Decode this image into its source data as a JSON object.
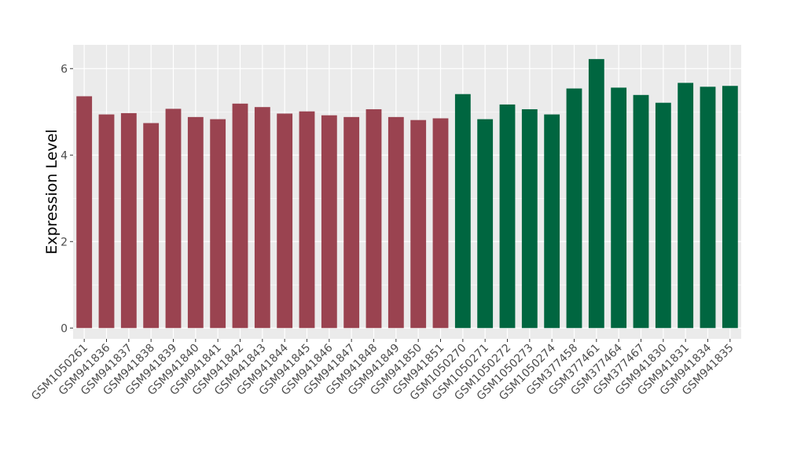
{
  "chart_data": {
    "type": "bar",
    "title": "",
    "xlabel": "",
    "ylabel": "Expression Level",
    "ylim": [
      -0.25,
      6.55
    ],
    "yticks": [
      0,
      2,
      4,
      6
    ],
    "grid": true,
    "colors": {
      "group1": "#9a4350",
      "group2": "#006640",
      "panel": "#ebebeb",
      "grid": "#ffffff"
    },
    "categories": [
      "GSM1050261",
      "GSM941836",
      "GSM941837",
      "GSM941838",
      "GSM941839",
      "GSM941840",
      "GSM941841",
      "GSM941842",
      "GSM941843",
      "GSM941844",
      "GSM941845",
      "GSM941846",
      "GSM941847",
      "GSM941848",
      "GSM941849",
      "GSM941850",
      "GSM941851",
      "GSM1050270",
      "GSM1050271",
      "GSM1050272",
      "GSM1050273",
      "GSM1050274",
      "GSM377458",
      "GSM377461",
      "GSM377464",
      "GSM377467",
      "GSM941830",
      "GSM941831",
      "GSM941834",
      "GSM941835"
    ],
    "values": [
      5.36,
      4.94,
      4.97,
      4.74,
      5.07,
      4.88,
      4.83,
      5.19,
      5.11,
      4.96,
      5.01,
      4.92,
      4.88,
      5.06,
      4.88,
      4.81,
      4.85,
      5.41,
      4.83,
      5.17,
      5.06,
      4.94,
      5.54,
      6.22,
      5.56,
      5.39,
      5.21,
      5.67,
      5.58,
      5.6
    ],
    "groups": [
      "group1",
      "group1",
      "group1",
      "group1",
      "group1",
      "group1",
      "group1",
      "group1",
      "group1",
      "group1",
      "group1",
      "group1",
      "group1",
      "group1",
      "group1",
      "group1",
      "group1",
      "group2",
      "group2",
      "group2",
      "group2",
      "group2",
      "group2",
      "group2",
      "group2",
      "group2",
      "group2",
      "group2",
      "group2",
      "group2"
    ]
  }
}
